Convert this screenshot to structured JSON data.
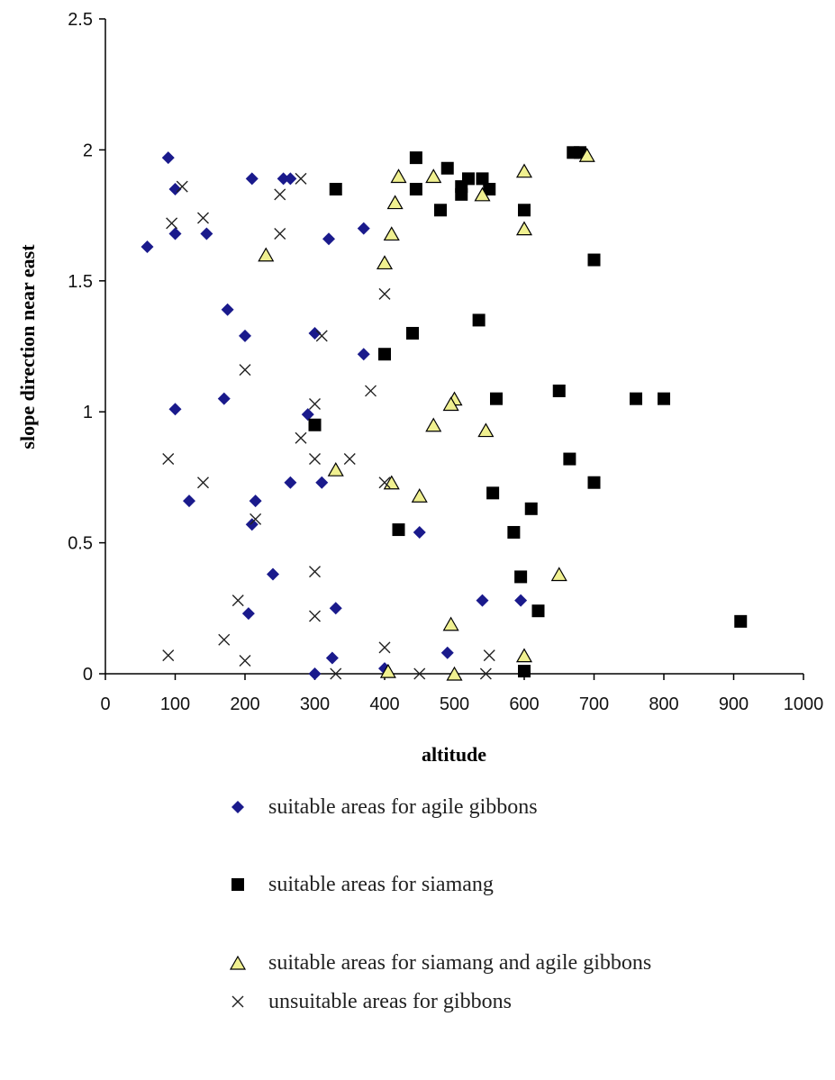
{
  "chart_data": {
    "type": "scatter",
    "xlabel": "altitude",
    "ylabel": "slope direction near east",
    "xlim": [
      0,
      1000
    ],
    "ylim": [
      0,
      2.5
    ],
    "x_ticks": [
      "0",
      "100",
      "200",
      "300",
      "400",
      "500",
      "600",
      "700",
      "800",
      "900",
      "1000"
    ],
    "y_ticks": [
      "0",
      "0.5",
      "1",
      "1.5",
      "2",
      "2.5"
    ],
    "grid": false,
    "legend_position": "bottom",
    "series": [
      {
        "name": "suitable areas for agile gibbons",
        "marker": "diamond",
        "color": "#1a1a8c",
        "points": [
          [
            60,
            1.63
          ],
          [
            90,
            1.97
          ],
          [
            100,
            1.85
          ],
          [
            100,
            1.68
          ],
          [
            145,
            1.68
          ],
          [
            210,
            1.89
          ],
          [
            255,
            1.89
          ],
          [
            265,
            1.89
          ],
          [
            320,
            1.66
          ],
          [
            370,
            1.7
          ],
          [
            175,
            1.39
          ],
          [
            200,
            1.29
          ],
          [
            300,
            1.3
          ],
          [
            370,
            1.22
          ],
          [
            170,
            1.05
          ],
          [
            100,
            1.01
          ],
          [
            290,
            0.99
          ],
          [
            120,
            0.66
          ],
          [
            215,
            0.66
          ],
          [
            265,
            0.73
          ],
          [
            310,
            0.73
          ],
          [
            210,
            0.57
          ],
          [
            240,
            0.38
          ],
          [
            205,
            0.23
          ],
          [
            330,
            0.25
          ],
          [
            300,
            0.0
          ],
          [
            325,
            0.06
          ],
          [
            400,
            0.02
          ],
          [
            450,
            0.54
          ],
          [
            490,
            0.08
          ],
          [
            540,
            0.28
          ],
          [
            595,
            0.28
          ]
        ]
      },
      {
        "name": "suitable areas for siamang",
        "marker": "square",
        "color": "#000000",
        "points": [
          [
            330,
            1.85
          ],
          [
            445,
            1.97
          ],
          [
            445,
            1.85
          ],
          [
            490,
            1.93
          ],
          [
            520,
            1.89
          ],
          [
            540,
            1.89
          ],
          [
            510,
            1.86
          ],
          [
            510,
            1.83
          ],
          [
            550,
            1.85
          ],
          [
            480,
            1.77
          ],
          [
            600,
            1.77
          ],
          [
            670,
            1.99
          ],
          [
            680,
            1.99
          ],
          [
            700,
            1.58
          ],
          [
            535,
            1.35
          ],
          [
            440,
            1.3
          ],
          [
            400,
            1.22
          ],
          [
            300,
            0.95
          ],
          [
            560,
            1.05
          ],
          [
            650,
            1.08
          ],
          [
            760,
            1.05
          ],
          [
            800,
            1.05
          ],
          [
            665,
            0.82
          ],
          [
            700,
            0.73
          ],
          [
            555,
            0.69
          ],
          [
            610,
            0.63
          ],
          [
            420,
            0.55
          ],
          [
            585,
            0.54
          ],
          [
            595,
            0.37
          ],
          [
            620,
            0.24
          ],
          [
            910,
            0.2
          ],
          [
            600,
            0.01
          ]
        ]
      },
      {
        "name": "suitable areas for siamang and agile gibbons",
        "marker": "triangle",
        "color": "#f0f090",
        "points": [
          [
            230,
            1.6
          ],
          [
            415,
            1.8
          ],
          [
            420,
            1.9
          ],
          [
            470,
            1.9
          ],
          [
            540,
            1.83
          ],
          [
            600,
            1.92
          ],
          [
            690,
            1.98
          ],
          [
            410,
            1.68
          ],
          [
            400,
            1.57
          ],
          [
            600,
            1.7
          ],
          [
            500,
            1.05
          ],
          [
            495,
            1.03
          ],
          [
            470,
            0.95
          ],
          [
            545,
            0.93
          ],
          [
            330,
            0.78
          ],
          [
            410,
            0.73
          ],
          [
            450,
            0.68
          ],
          [
            650,
            0.38
          ],
          [
            495,
            0.19
          ],
          [
            600,
            0.07
          ],
          [
            405,
            0.01
          ],
          [
            500,
            0.0
          ]
        ]
      },
      {
        "name": "unsuitable areas for gibbons",
        "marker": "x",
        "color": "#222222",
        "points": [
          [
            110,
            1.86
          ],
          [
            95,
            1.72
          ],
          [
            140,
            1.74
          ],
          [
            250,
            1.83
          ],
          [
            280,
            1.89
          ],
          [
            250,
            1.68
          ],
          [
            400,
            1.45
          ],
          [
            310,
            1.29
          ],
          [
            200,
            1.16
          ],
          [
            380,
            1.08
          ],
          [
            300,
            1.03
          ],
          [
            280,
            0.9
          ],
          [
            90,
            0.82
          ],
          [
            300,
            0.82
          ],
          [
            350,
            0.82
          ],
          [
            140,
            0.73
          ],
          [
            400,
            0.73
          ],
          [
            215,
            0.59
          ],
          [
            300,
            0.39
          ],
          [
            190,
            0.28
          ],
          [
            300,
            0.22
          ],
          [
            170,
            0.13
          ],
          [
            90,
            0.07
          ],
          [
            200,
            0.05
          ],
          [
            400,
            0.1
          ],
          [
            550,
            0.07
          ],
          [
            330,
            0.0
          ],
          [
            450,
            0.0
          ],
          [
            545,
            0.0
          ]
        ]
      }
    ]
  }
}
